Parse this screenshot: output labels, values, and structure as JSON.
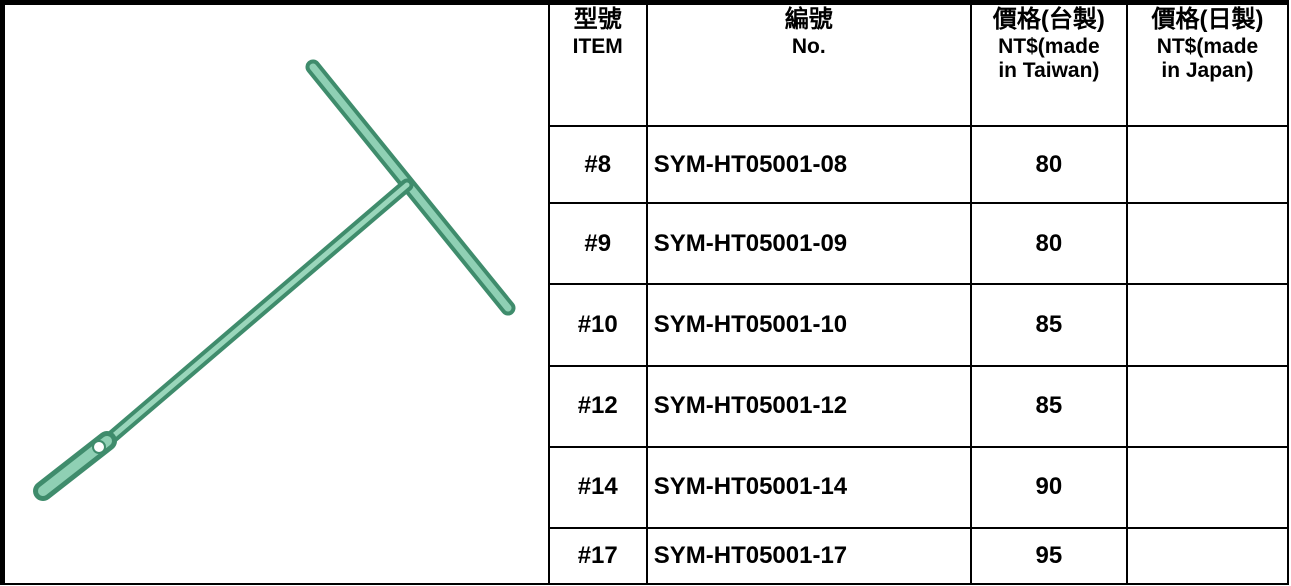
{
  "table": {
    "header": [
      {
        "lines": [
          "型號",
          "ITEM"
        ]
      },
      {
        "lines": [
          "編號",
          "No."
        ]
      },
      {
        "lines": [
          "價格(台製)",
          "NT$(made",
          "in Taiwan)"
        ]
      },
      {
        "lines": [
          "價格(日製)",
          "NT$(made",
          "in Japan)"
        ]
      }
    ],
    "rows": [
      [
        "#8",
        "SYM-HT05001-08",
        80
      ],
      [
        "#9",
        "SYM-HT05001-09",
        80
      ],
      [
        "#10",
        "SYM-HT05001-10",
        85
      ],
      [
        "#12",
        "SYM-HT05001-12",
        85
      ],
      [
        "#14",
        "SYM-HT05001-14",
        90
      ],
      [
        "#17",
        "SYM-HT05001-17",
        95
      ]
    ]
  }
}
